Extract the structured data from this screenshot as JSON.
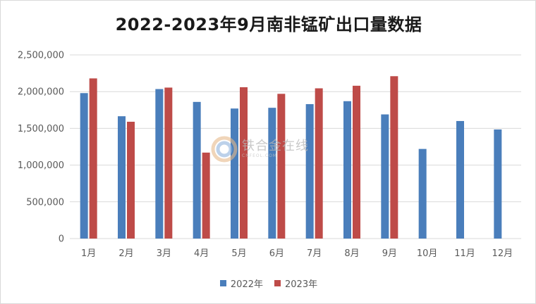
{
  "chart_data": {
    "type": "bar",
    "title": "2022-2023年9月南非锰矿出口量数据",
    "categories": [
      "1月",
      "2月",
      "3月",
      "4月",
      "5月",
      "6月",
      "7月",
      "8月",
      "9月",
      "10月",
      "11月",
      "12月"
    ],
    "series": [
      {
        "name": "2022年",
        "color": "#4a7ebb",
        "values": [
          1980000,
          1665000,
          2035000,
          1860000,
          1770000,
          1780000,
          1830000,
          1870000,
          1690000,
          1220000,
          1600000,
          1485000
        ]
      },
      {
        "name": "2023年",
        "color": "#be4b48",
        "values": [
          2180000,
          1590000,
          2055000,
          1170000,
          2060000,
          1970000,
          2045000,
          2080000,
          2210000,
          null,
          null,
          null
        ]
      }
    ],
    "ylim": [
      0,
      2500000
    ],
    "yticks": [
      0,
      500000,
      1000000,
      1500000,
      2000000,
      2500000
    ],
    "ytick_labels": [
      "0",
      "500,000",
      "1,000,000",
      "1,500,000",
      "2,000,000",
      "2,500,000"
    ],
    "grid": true,
    "legend_position": "bottom",
    "xlabel": "",
    "ylabel": ""
  },
  "watermark": {
    "text": "铁合金在线",
    "subtext": "CNFEOL.COM"
  }
}
